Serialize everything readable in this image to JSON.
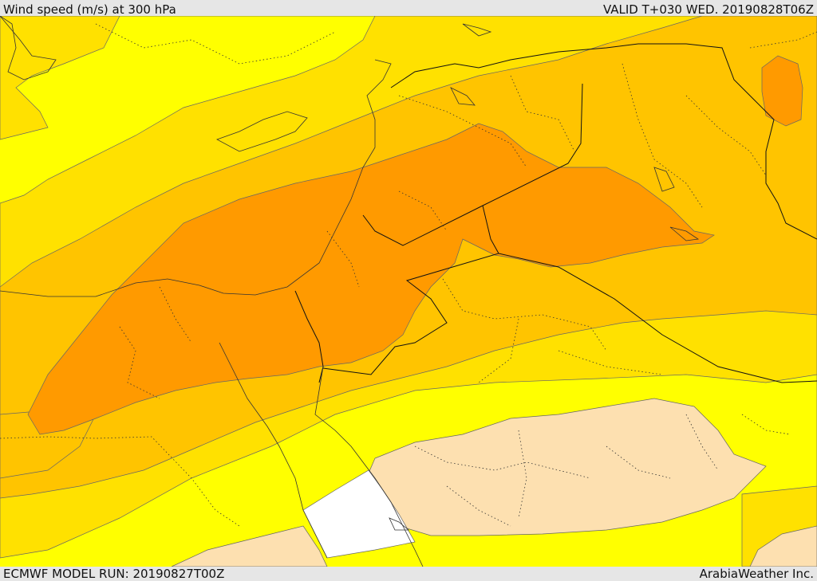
{
  "header": {
    "title": "Wind speed (m/s) at 300 hPa",
    "valid": "VALID T+030 WED. 20190828T06Z"
  },
  "footer": {
    "model_run": "ECMWF MODEL RUN: 20190827T00Z",
    "credit": "ArabiaWeather Inc."
  },
  "map": {
    "variable": "wind speed",
    "level": "300 hPa",
    "units": "m/s",
    "band_colors": [
      "#ffffff",
      "#fde0b0",
      "#ffff00",
      "#ffe100",
      "#ffc400",
      "#ffa800",
      "#ff9a00"
    ]
  }
}
